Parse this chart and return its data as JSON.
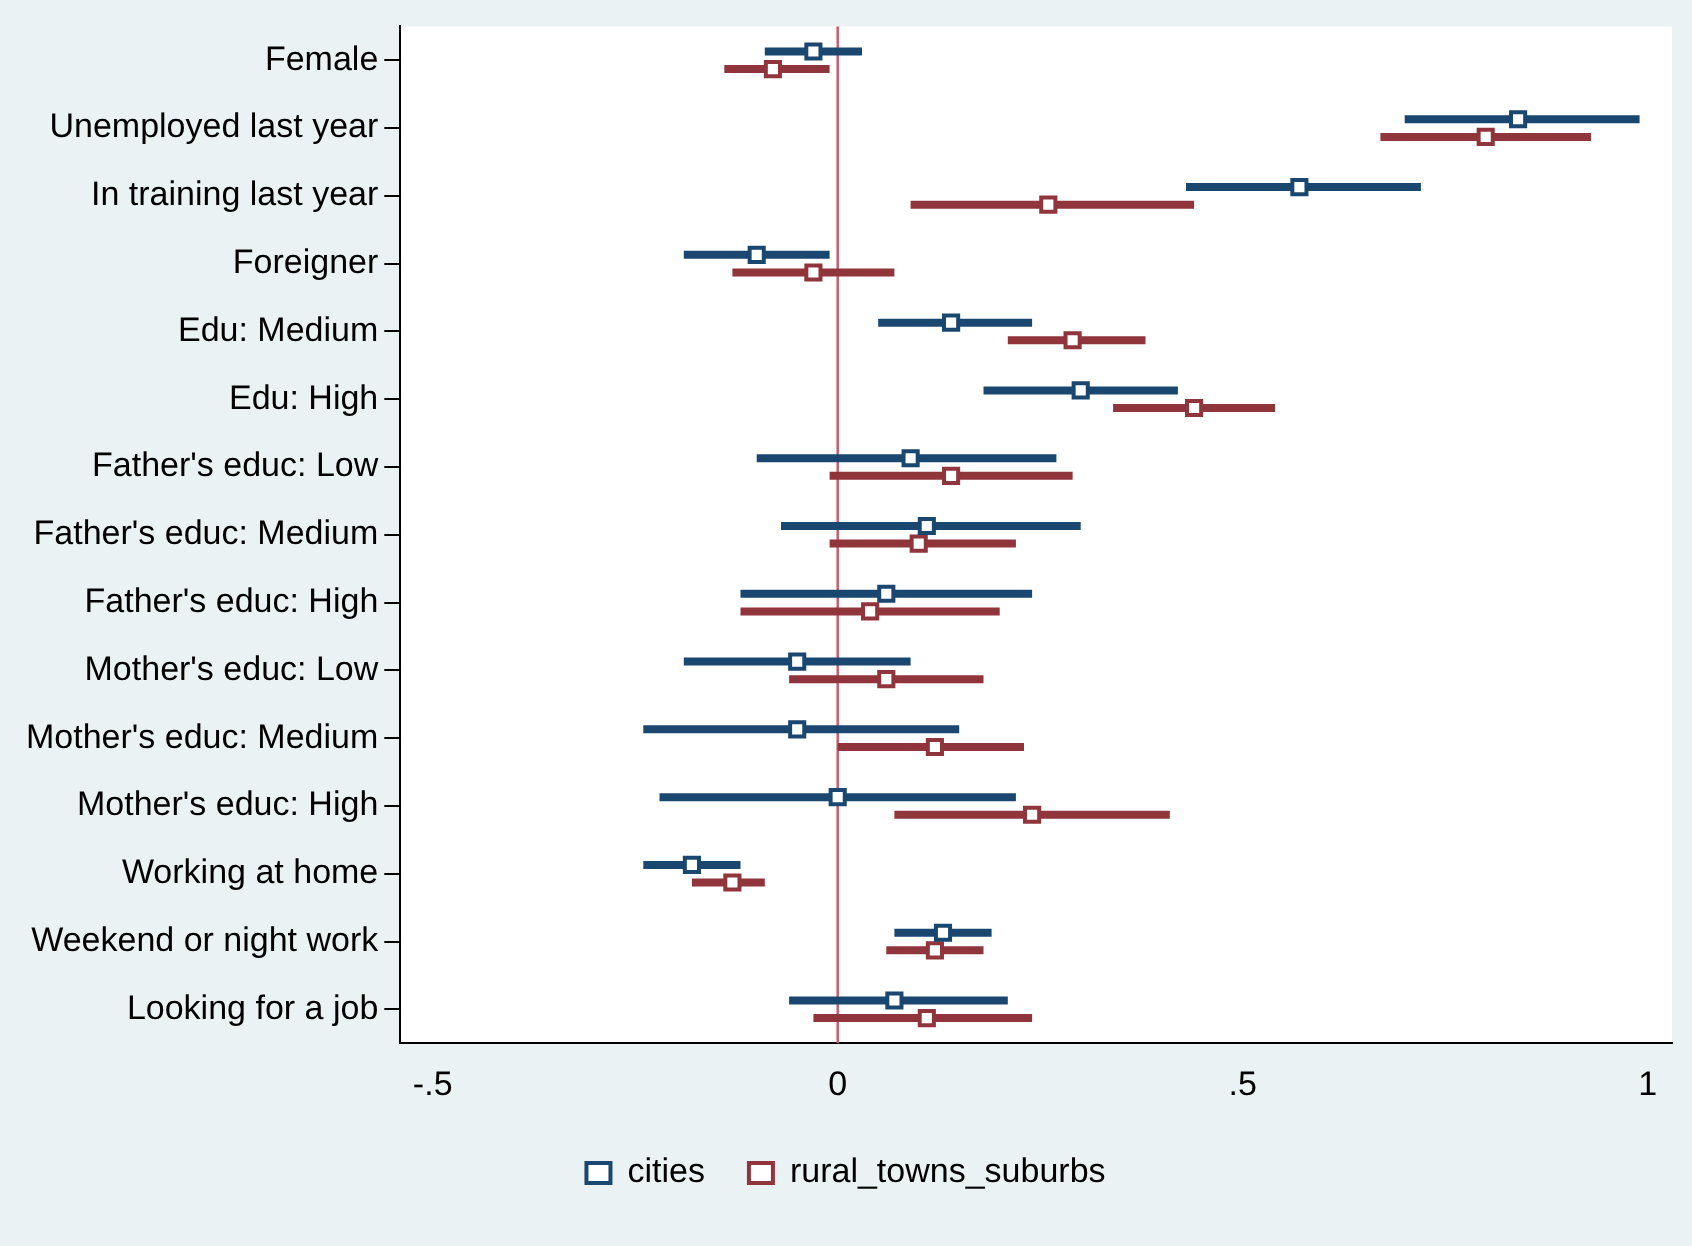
{
  "chart_data": {
    "type": "scatter",
    "orientation": "horizontal",
    "categories": [
      "Female",
      "Unemployed last year",
      "In training last year",
      "Foreigner",
      "Edu: Medium",
      "Edu: High",
      "Father's educ: Low",
      "Father's educ: Medium",
      "Father's educ: High",
      "Mother's educ: Low",
      "Mother's educ: Medium",
      "Mother's educ: High",
      "Working at home",
      "Weekend or night work",
      "Looking for a job"
    ],
    "series": [
      {
        "name": "cities",
        "color": "#1a476f",
        "values": [
          -0.03,
          0.84,
          0.57,
          -0.1,
          0.14,
          0.3,
          0.09,
          0.11,
          0.06,
          -0.05,
          -0.05,
          0.0,
          -0.18,
          0.13,
          0.07
        ],
        "errors": [
          [
            -0.09,
            0.03
          ],
          [
            0.7,
            0.99
          ],
          [
            0.43,
            0.72
          ],
          [
            -0.19,
            -0.01
          ],
          [
            0.05,
            0.24
          ],
          [
            0.18,
            0.42
          ],
          [
            -0.1,
            0.27
          ],
          [
            -0.07,
            0.3
          ],
          [
            -0.12,
            0.24
          ],
          [
            -0.19,
            0.09
          ],
          [
            -0.24,
            0.15
          ],
          [
            -0.22,
            0.22
          ],
          [
            -0.24,
            -0.12
          ],
          [
            0.07,
            0.19
          ],
          [
            -0.06,
            0.21
          ]
        ]
      },
      {
        "name": "rural_towns_suburbs",
        "color": "#90353b",
        "values": [
          -0.08,
          0.8,
          0.26,
          -0.03,
          0.29,
          0.44,
          0.14,
          0.1,
          0.04,
          0.06,
          0.12,
          0.24,
          -0.13,
          0.12,
          0.11
        ],
        "errors": [
          [
            -0.14,
            -0.01
          ],
          [
            0.67,
            0.93
          ],
          [
            0.09,
            0.44
          ],
          [
            -0.13,
            0.07
          ],
          [
            0.21,
            0.38
          ],
          [
            0.34,
            0.54
          ],
          [
            -0.01,
            0.29
          ],
          [
            -0.01,
            0.22
          ],
          [
            -0.12,
            0.2
          ],
          [
            -0.06,
            0.18
          ],
          [
            0.0,
            0.23
          ],
          [
            0.07,
            0.41
          ],
          [
            -0.18,
            -0.09
          ],
          [
            0.06,
            0.18
          ],
          [
            -0.03,
            0.24
          ]
        ]
      }
    ],
    "xlim": [
      -0.54,
      1.03
    ],
    "xticks": [
      {
        "value": -0.5,
        "label": "-.5"
      },
      0,
      {
        "value": 0.5,
        "label": ".5"
      },
      1
    ],
    "ref_lines": [
      {
        "axis": "x",
        "value": 0,
        "color": "#c8566e"
      }
    ],
    "marker": "square",
    "legend": "bottom",
    "grid": false
  }
}
